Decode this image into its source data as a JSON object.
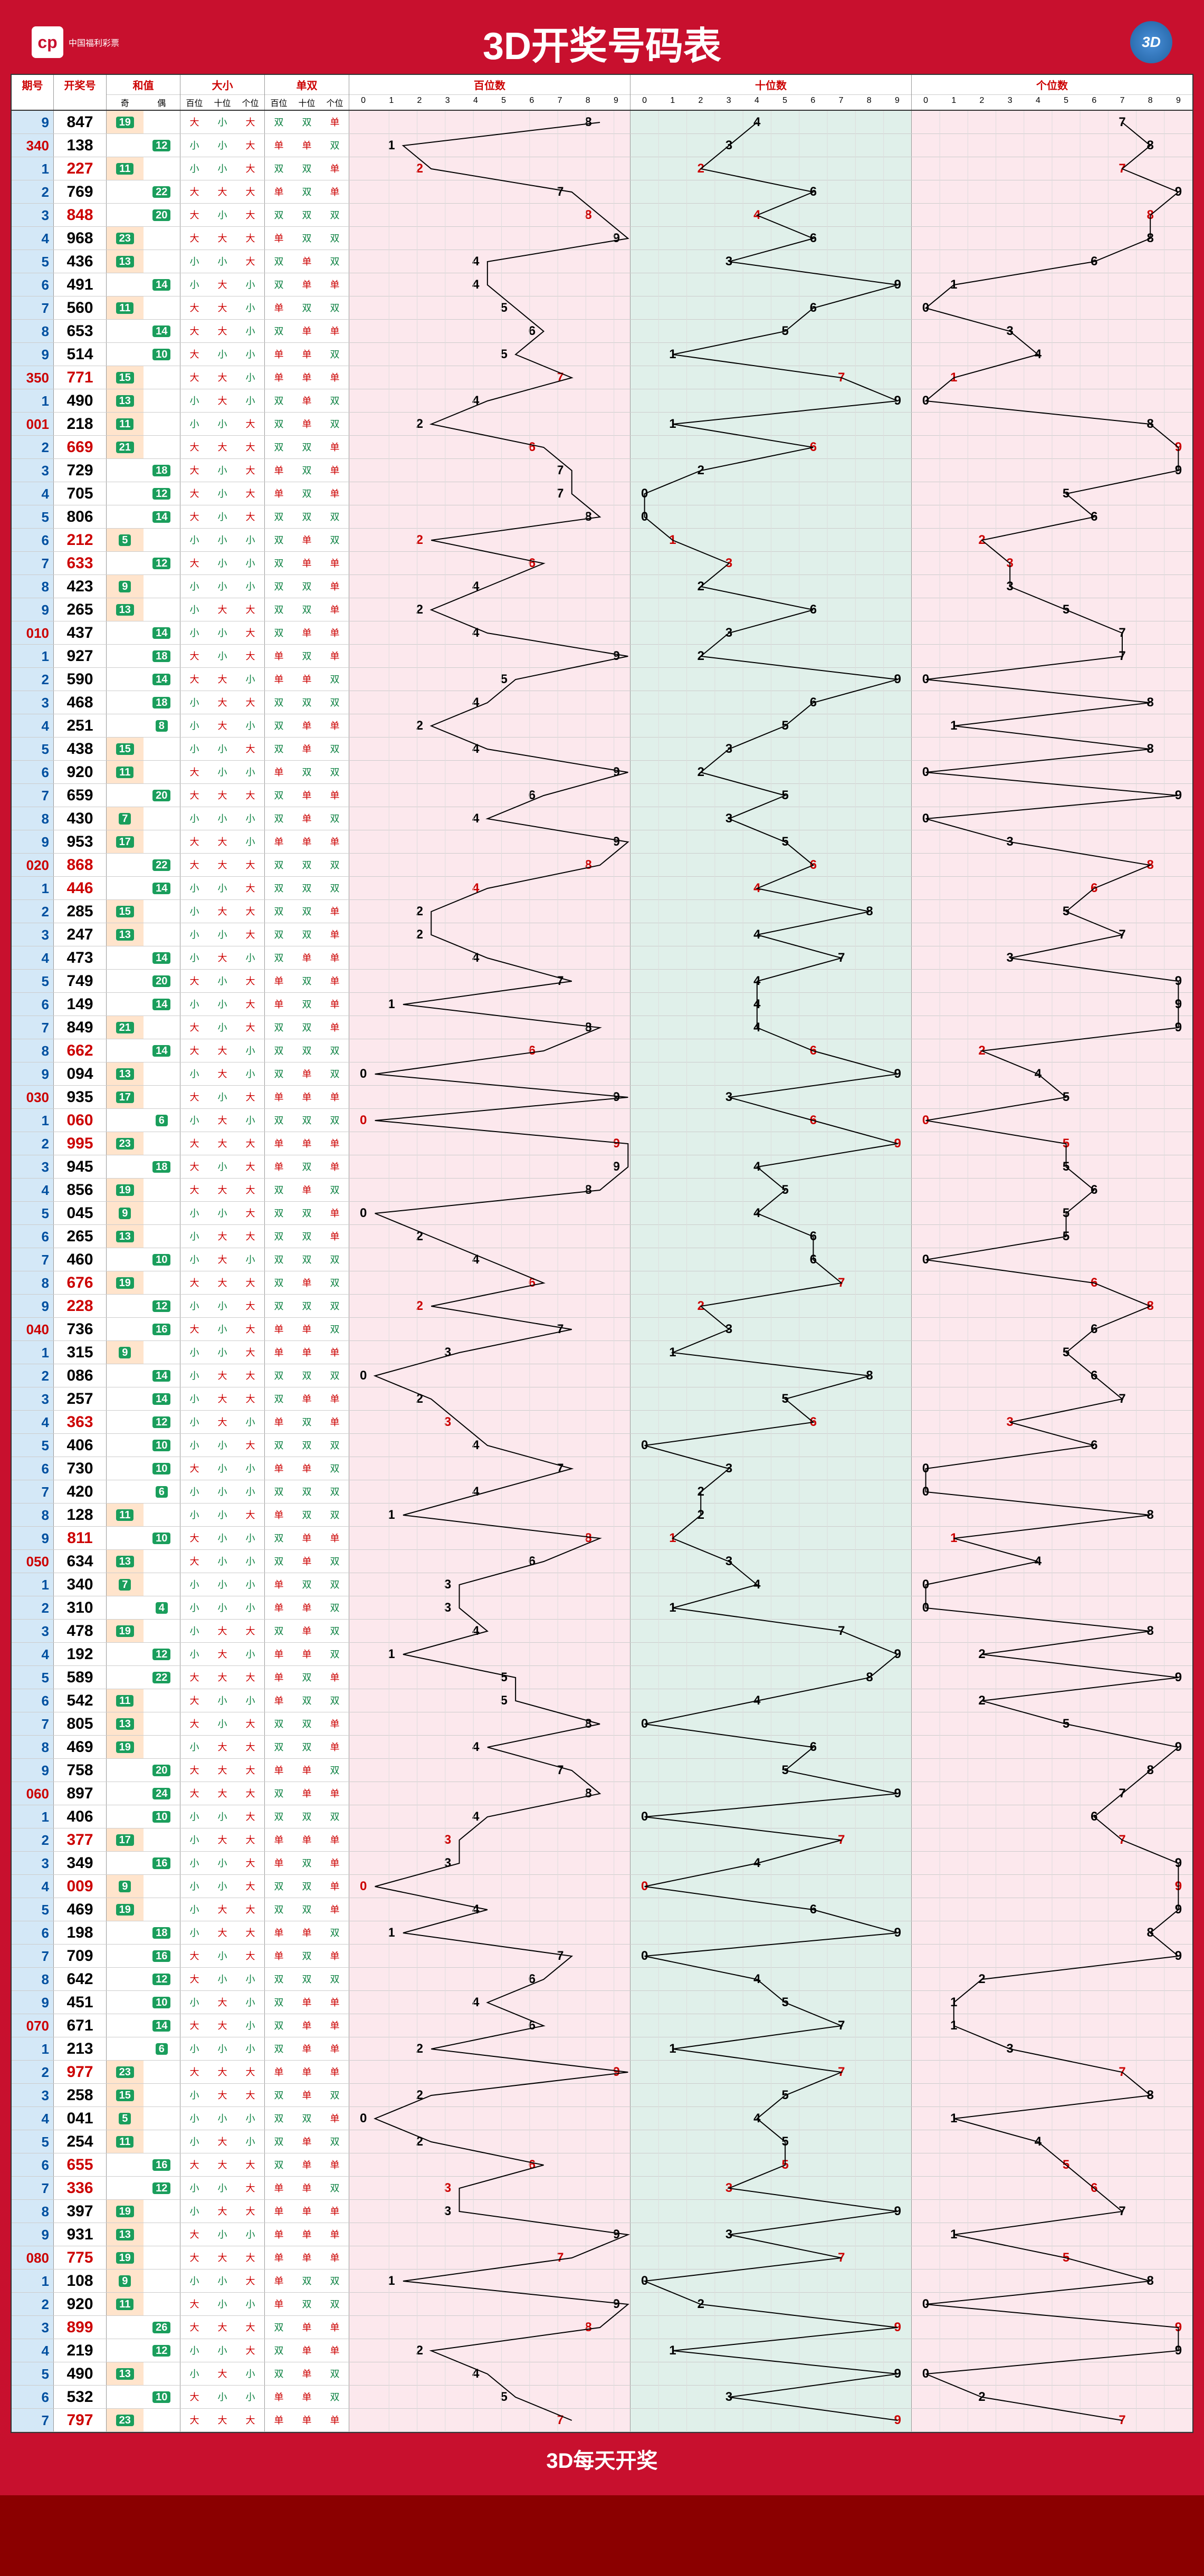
{
  "title": "3D开奖号码表",
  "logo_text": "中国福利彩票",
  "logo_mark": "cp",
  "badge": "3D",
  "footer": "3D每天开奖",
  "headers": {
    "period": "期号",
    "number": "开奖号",
    "sum": "和值",
    "sum_sub": [
      "奇",
      "偶"
    ],
    "dx": "大小",
    "dx_sub": [
      "大小",
      "单双",
      "百位",
      "十位",
      "个位"
    ],
    "ds": "单双",
    "ds_sub": [
      "百位",
      "十位",
      "个位"
    ],
    "bai": "百位数",
    "shi": "十位数",
    "ge": "个位数"
  },
  "digits": [
    "0",
    "1",
    "2",
    "3",
    "4",
    "5",
    "6",
    "7",
    "8",
    "9"
  ],
  "chart_bg": {
    "bai": "#fce8ed",
    "shi": "#e0f0ea",
    "ge": "#fce8ed"
  },
  "colors": {
    "period_red": "#c00",
    "period_blue": "#0050a0",
    "num_red": "#c00",
    "num_black": "#000",
    "pill_bg": "#1a9e5c",
    "da": "#c00",
    "xiao": "#0a8040",
    "dan": "#c00",
    "shuang": "#0a8040",
    "line": "#000",
    "dig_red": "#c00",
    "dig_black": "#000",
    "odd_cell": "#ffe4cc",
    "sum_odd_bg": "#ffe4cc"
  },
  "rows": [
    {
      "p": "9",
      "n": "847",
      "s": 19,
      "pf": "blue"
    },
    {
      "p": "340",
      "n": "138",
      "s": 12,
      "pf": "red"
    },
    {
      "p": "1",
      "n": "227",
      "s": 11,
      "pf": "blue",
      "nr": 1
    },
    {
      "p": "2",
      "n": "769",
      "s": 22,
      "pf": "blue"
    },
    {
      "p": "3",
      "n": "848",
      "s": 20,
      "pf": "blue",
      "nr": 1
    },
    {
      "p": "4",
      "n": "968",
      "s": 23,
      "pf": "blue"
    },
    {
      "p": "5",
      "n": "436",
      "s": 13,
      "pf": "blue"
    },
    {
      "p": "6",
      "n": "491",
      "s": 14,
      "pf": "blue"
    },
    {
      "p": "7",
      "n": "560",
      "s": 11,
      "pf": "blue"
    },
    {
      "p": "8",
      "n": "653",
      "s": 14,
      "pf": "blue"
    },
    {
      "p": "9",
      "n": "514",
      "s": 10,
      "pf": "blue"
    },
    {
      "p": "350",
      "n": "771",
      "s": 15,
      "pf": "red",
      "nr": 1
    },
    {
      "p": "1",
      "n": "490",
      "s": 13,
      "pf": "blue"
    },
    {
      "p": "001",
      "n": "218",
      "s": 11,
      "pf": "red"
    },
    {
      "p": "2",
      "n": "669",
      "s": 21,
      "pf": "blue",
      "nr": 1
    },
    {
      "p": "3",
      "n": "729",
      "s": 18,
      "pf": "blue"
    },
    {
      "p": "4",
      "n": "705",
      "s": 12,
      "pf": "blue"
    },
    {
      "p": "5",
      "n": "806",
      "s": 14,
      "pf": "blue"
    },
    {
      "p": "6",
      "n": "212",
      "s": 5,
      "pf": "blue",
      "nr": 1
    },
    {
      "p": "7",
      "n": "633",
      "s": 12,
      "pf": "blue",
      "nr": 1
    },
    {
      "p": "8",
      "n": "423",
      "s": 9,
      "pf": "blue"
    },
    {
      "p": "9",
      "n": "265",
      "s": 13,
      "pf": "blue"
    },
    {
      "p": "010",
      "n": "437",
      "s": 14,
      "pf": "red"
    },
    {
      "p": "1",
      "n": "927",
      "s": 18,
      "pf": "blue"
    },
    {
      "p": "2",
      "n": "590",
      "s": 14,
      "pf": "blue"
    },
    {
      "p": "3",
      "n": "468",
      "s": 18,
      "pf": "blue"
    },
    {
      "p": "4",
      "n": "251",
      "s": 8,
      "pf": "blue"
    },
    {
      "p": "5",
      "n": "438",
      "s": 15,
      "pf": "blue"
    },
    {
      "p": "6",
      "n": "920",
      "s": 11,
      "pf": "blue"
    },
    {
      "p": "7",
      "n": "659",
      "s": 20,
      "pf": "blue"
    },
    {
      "p": "8",
      "n": "430",
      "s": 7,
      "pf": "blue"
    },
    {
      "p": "9",
      "n": "953",
      "s": 17,
      "pf": "blue"
    },
    {
      "p": "020",
      "n": "868",
      "s": 22,
      "pf": "red",
      "nr": 1
    },
    {
      "p": "1",
      "n": "446",
      "s": 14,
      "pf": "blue",
      "nr": 1
    },
    {
      "p": "2",
      "n": "285",
      "s": 15,
      "pf": "blue"
    },
    {
      "p": "3",
      "n": "247",
      "s": 13,
      "pf": "blue"
    },
    {
      "p": "4",
      "n": "473",
      "s": 14,
      "pf": "blue"
    },
    {
      "p": "5",
      "n": "749",
      "s": 20,
      "pf": "blue"
    },
    {
      "p": "6",
      "n": "149",
      "s": 14,
      "pf": "blue"
    },
    {
      "p": "7",
      "n": "849",
      "s": 21,
      "pf": "blue"
    },
    {
      "p": "8",
      "n": "662",
      "s": 14,
      "pf": "blue",
      "nr": 1
    },
    {
      "p": "9",
      "n": "094",
      "s": 13,
      "pf": "blue"
    },
    {
      "p": "030",
      "n": "935",
      "s": 17,
      "pf": "red"
    },
    {
      "p": "1",
      "n": "060",
      "s": 6,
      "pf": "blue",
      "nr": 1
    },
    {
      "p": "2",
      "n": "995",
      "s": 23,
      "pf": "blue",
      "nr": 1
    },
    {
      "p": "3",
      "n": "945",
      "s": 18,
      "pf": "blue"
    },
    {
      "p": "4",
      "n": "856",
      "s": 19,
      "pf": "blue"
    },
    {
      "p": "5",
      "n": "045",
      "s": 9,
      "pf": "blue"
    },
    {
      "p": "6",
      "n": "265",
      "s": 13,
      "pf": "blue"
    },
    {
      "p": "7",
      "n": "460",
      "s": 10,
      "pf": "blue"
    },
    {
      "p": "8",
      "n": "676",
      "s": 19,
      "pf": "blue",
      "nr": 1
    },
    {
      "p": "9",
      "n": "228",
      "s": 12,
      "pf": "blue",
      "nr": 1
    },
    {
      "p": "040",
      "n": "736",
      "s": 16,
      "pf": "red"
    },
    {
      "p": "1",
      "n": "315",
      "s": 9,
      "pf": "blue"
    },
    {
      "p": "2",
      "n": "086",
      "s": 14,
      "pf": "blue"
    },
    {
      "p": "3",
      "n": "257",
      "s": 14,
      "pf": "blue"
    },
    {
      "p": "4",
      "n": "363",
      "s": 12,
      "pf": "blue",
      "nr": 1
    },
    {
      "p": "5",
      "n": "406",
      "s": 10,
      "pf": "blue"
    },
    {
      "p": "6",
      "n": "730",
      "s": 10,
      "pf": "blue"
    },
    {
      "p": "7",
      "n": "420",
      "s": 6,
      "pf": "blue"
    },
    {
      "p": "8",
      "n": "128",
      "s": 11,
      "pf": "blue"
    },
    {
      "p": "9",
      "n": "811",
      "s": 10,
      "pf": "blue",
      "nr": 1
    },
    {
      "p": "050",
      "n": "634",
      "s": 13,
      "pf": "red"
    },
    {
      "p": "1",
      "n": "340",
      "s": 7,
      "pf": "blue"
    },
    {
      "p": "2",
      "n": "310",
      "s": 4,
      "pf": "blue"
    },
    {
      "p": "3",
      "n": "478",
      "s": 19,
      "pf": "blue"
    },
    {
      "p": "4",
      "n": "192",
      "s": 12,
      "pf": "blue"
    },
    {
      "p": "5",
      "n": "589",
      "s": 22,
      "pf": "blue"
    },
    {
      "p": "6",
      "n": "542",
      "s": 11,
      "pf": "blue"
    },
    {
      "p": "7",
      "n": "805",
      "s": 13,
      "pf": "blue"
    },
    {
      "p": "8",
      "n": "469",
      "s": 19,
      "pf": "blue"
    },
    {
      "p": "9",
      "n": "758",
      "s": 20,
      "pf": "blue"
    },
    {
      "p": "060",
      "n": "897",
      "s": 24,
      "pf": "red"
    },
    {
      "p": "1",
      "n": "406",
      "s": 10,
      "pf": "blue"
    },
    {
      "p": "2",
      "n": "377",
      "s": 17,
      "pf": "blue",
      "nr": 1
    },
    {
      "p": "3",
      "n": "349",
      "s": 16,
      "pf": "blue"
    },
    {
      "p": "4",
      "n": "009",
      "s": 9,
      "pf": "blue",
      "nr": 1
    },
    {
      "p": "5",
      "n": "469",
      "s": 19,
      "pf": "blue"
    },
    {
      "p": "6",
      "n": "198",
      "s": 18,
      "pf": "blue"
    },
    {
      "p": "7",
      "n": "709",
      "s": 16,
      "pf": "blue"
    },
    {
      "p": "8",
      "n": "642",
      "s": 12,
      "pf": "blue"
    },
    {
      "p": "9",
      "n": "451",
      "s": 10,
      "pf": "blue"
    },
    {
      "p": "070",
      "n": "671",
      "s": 14,
      "pf": "red"
    },
    {
      "p": "1",
      "n": "213",
      "s": 6,
      "pf": "blue"
    },
    {
      "p": "2",
      "n": "977",
      "s": 23,
      "pf": "blue",
      "nr": 1
    },
    {
      "p": "3",
      "n": "258",
      "s": 15,
      "pf": "blue"
    },
    {
      "p": "4",
      "n": "041",
      "s": 5,
      "pf": "blue"
    },
    {
      "p": "5",
      "n": "254",
      "s": 11,
      "pf": "blue"
    },
    {
      "p": "6",
      "n": "655",
      "s": 16,
      "pf": "blue",
      "nr": 1
    },
    {
      "p": "7",
      "n": "336",
      "s": 12,
      "pf": "blue",
      "nr": 1
    },
    {
      "p": "8",
      "n": "397",
      "s": 19,
      "pf": "blue"
    },
    {
      "p": "9",
      "n": "931",
      "s": 13,
      "pf": "blue"
    },
    {
      "p": "080",
      "n": "775",
      "s": 19,
      "pf": "red",
      "nr": 1
    },
    {
      "p": "1",
      "n": "108",
      "s": 9,
      "pf": "blue"
    },
    {
      "p": "2",
      "n": "920",
      "s": 11,
      "pf": "blue"
    },
    {
      "p": "3",
      "n": "899",
      "s": 26,
      "pf": "blue",
      "nr": 1
    },
    {
      "p": "4",
      "n": "219",
      "s": 12,
      "pf": "blue"
    },
    {
      "p": "5",
      "n": "490",
      "s": 13,
      "pf": "blue"
    },
    {
      "p": "6",
      "n": "532",
      "s": 10,
      "pf": "blue"
    },
    {
      "p": "7",
      "n": "797",
      "s": 23,
      "pf": "blue",
      "nr": 1
    }
  ]
}
